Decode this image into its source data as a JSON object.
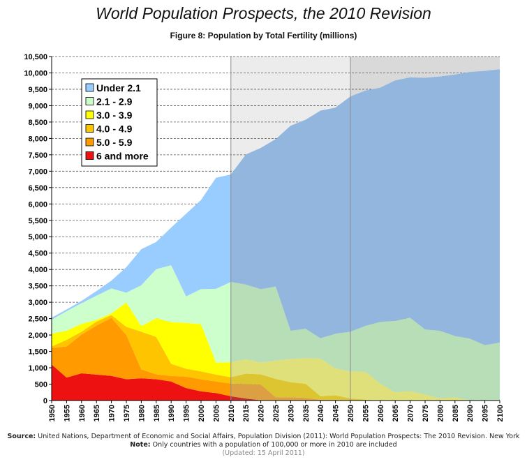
{
  "header": {
    "title": "World Population Prospects, the 2010 Revision",
    "subtitle": "Figure 8: Population by Total Fertility (millions)"
  },
  "footer": {
    "source_label": "Source:",
    "source_text": "United Nations, Department of Economic and Social Affairs, Population Division (2011): World Population Prospects: The 2010 Revision. New York",
    "note_label": "Note:",
    "note_text": "Only countries with a population of 100,000 or more in 2010 are included",
    "updated": "(Updated: 15 April 2011)"
  },
  "chart_data": {
    "type": "area",
    "stacked": true,
    "title": "World Population Prospects, the 2010 Revision",
    "subtitle": "Figure 8: Population by Total Fertility (millions)",
    "xlabel": "",
    "ylabel": "",
    "x": [
      1950,
      1955,
      1960,
      1965,
      1970,
      1975,
      1980,
      1985,
      1990,
      1995,
      2000,
      2005,
      2010,
      2015,
      2020,
      2025,
      2030,
      2035,
      2040,
      2045,
      2050,
      2055,
      2060,
      2065,
      2070,
      2075,
      2080,
      2085,
      2090,
      2095,
      2100
    ],
    "xlim": [
      1950,
      2100
    ],
    "ylim": [
      0,
      10500
    ],
    "y_ticks": [
      0,
      500,
      1000,
      1500,
      2000,
      2500,
      3000,
      3500,
      4000,
      4500,
      5000,
      5500,
      6000,
      6500,
      7000,
      7500,
      8000,
      8500,
      9000,
      9500,
      10000,
      10500
    ],
    "grid": "horizontal dashed",
    "legend_position": "top-left",
    "shaded_periods": [
      {
        "from": 2010,
        "to": 2050,
        "color": "#ececec"
      },
      {
        "from": 2050,
        "to": 2100,
        "color": "#d9d9d9"
      }
    ],
    "period_dividers": [
      2010,
      2050
    ],
    "series": [
      {
        "name": "6 and more",
        "color_past": "#ee1111",
        "color_future": "#c62a2a",
        "values": [
          1100,
          700,
          830,
          790,
          750,
          650,
          680,
          650,
          580,
          380,
          280,
          230,
          130,
          60,
          10,
          0,
          0,
          0,
          0,
          0,
          0,
          0,
          0,
          0,
          0,
          0,
          0,
          0,
          0,
          0,
          0
        ]
      },
      {
        "name": "5.0 - 5.9",
        "color_past": "#ff9a00",
        "color_future": "#dca042",
        "values": [
          500,
          950,
          1180,
          1500,
          1770,
          1350,
          270,
          150,
          170,
          350,
          370,
          350,
          390,
          440,
          480,
          100,
          100,
          80,
          20,
          20,
          10,
          0,
          0,
          0,
          0,
          0,
          0,
          0,
          0,
          0,
          0
        ]
      },
      {
        "name": "4.0 - 4.9",
        "color_past": "#ffc400",
        "color_future": "#dcc530",
        "values": [
          50,
          200,
          90,
          120,
          90,
          250,
          1150,
          1140,
          370,
          240,
          240,
          210,
          190,
          320,
          310,
          560,
          460,
          430,
          110,
          140,
          50,
          30,
          0,
          0,
          0,
          0,
          0,
          0,
          0,
          0,
          0
        ]
      },
      {
        "name": "3.0 - 3.9",
        "color_past": "#ffff00",
        "color_future": "#e0e07a",
        "values": [
          390,
          280,
          240,
          50,
          50,
          740,
          170,
          570,
          1270,
          1400,
          1440,
          370,
          460,
          440,
          360,
          560,
          710,
          780,
          1150,
          820,
          830,
          850,
          520,
          250,
          290,
          180,
          60,
          100,
          0,
          0,
          0
        ]
      },
      {
        "name": "2.1 - 2.9",
        "color_past": "#ccffcc",
        "color_future": "#b8deb8",
        "values": [
          430,
          600,
          630,
          740,
          760,
          300,
          1250,
          1500,
          1740,
          810,
          1070,
          2250,
          2450,
          2280,
          2240,
          2260,
          860,
          900,
          620,
          1060,
          1210,
          1400,
          1880,
          2180,
          2240,
          1990,
          2070,
          1870,
          1890,
          1690,
          1770
        ]
      },
      {
        "name": "Under 2.1",
        "color_past": "#99ccff",
        "color_future": "#92b6de",
        "values": [
          60,
          50,
          70,
          140,
          240,
          780,
          1100,
          830,
          1150,
          2520,
          2720,
          3390,
          3280,
          3970,
          4310,
          4500,
          6260,
          6380,
          6950,
          6900,
          7180,
          7180,
          7150,
          7340,
          7330,
          7680,
          7760,
          7980,
          8140,
          8370,
          8340
        ]
      }
    ]
  }
}
